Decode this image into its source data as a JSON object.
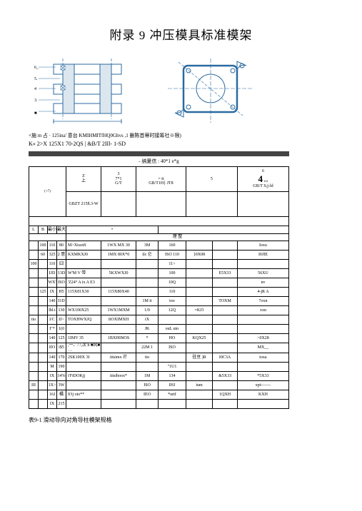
{
  "title": "附录 9 冲压模具标准模架",
  "fig": {
    "caption": "  ×施 m 占  · 125ina'   意台 KMIHMITfHQ0Ghvs ,1 删陈首蒂时接筹社※限)",
    "kline": "K« 2>X 125X1 70-2QS  |  &B/T 2IIl- 1-SD",
    "midlabel": "-  纳夏信 : 40*1 e*g"
  },
  "header": {
    "c1_code": "(+7)",
    "c2_top": "上",
    "c2_bot": "GBZT 215$.3-W",
    "c3_top": "7*1",
    "c3_bot": "G/T",
    "c4_top": "= tt",
    "c4_bot": "GB/T1H} JT8",
    "c5_num": "4",
    "c5_sub": "««",
    "c5_bot": "GB/T S;j-ld",
    "col_z": "Z",
    "col_3": "3",
    "col_5": "5",
    "col_6": "6"
  },
  "subhdr": {
    "a": "L",
    "b": "B",
    "c": "最小",
    "d": "最大",
    "e": "•",
    "mid": "理   整"
  },
  "rows": [
    {
      "a": "",
      "b": "100",
      "c": "110",
      "d1": "80",
      "d2": "",
      "e": "M>XiuotS",
      "f": "1WX MX 30",
      "g": "3M",
      "h": "160",
      "i": "",
      "j": "",
      "k": "Ioxu"
    },
    {
      "a": "",
      "b": "60",
      "c": "325",
      "d1": "2",
      "d2": "意",
      "e": "KXMKXJ0",
      "f": "1MX 80X*0",
      "g": "ilc 仑",
      "h": "ISO 110",
      "i": "}0X08",
      "j": "",
      "k": "I0JIE"
    },
    {
      "a": "100",
      "b": "",
      "c": "110",
      "d1": "臼",
      "d2": "",
      "e": "",
      "f": "",
      "g": "",
      "h": "11>",
      "i": "",
      "j": "",
      "k": ""
    },
    {
      "a": "",
      "b": "",
      "c": "IJD",
      "d1": "13D",
      "d2": "",
      "e": "W'M V 带",
      "f": "5KXWXJ0",
      "g": "",
      "h": "100",
      "i": "",
      "j": "E5X33",
      "k": "56XU"
    },
    {
      "a": "",
      "b": "",
      "c": "WX'",
      "d1": "ISO",
      "d2": "",
      "e": "'Z24° A ix A E3",
      "f": "",
      "g": "",
      "h": "10Q",
      "i": "",
      "j": "",
      "k": "nv"
    },
    {
      "a": "",
      "b": "125",
      "c": "IX",
      "d1": "H5",
      "d2": "",
      "e": "115X81X30",
      "f": "115X80X40",
      "g": "",
      "h": "110",
      "i": "",
      "j": "",
      "k": "4-jR A"
    },
    {
      "a": "",
      "b": "",
      "c": "140",
      "d1": "I1D",
      "d2": "",
      "e": "",
      "f": "",
      "g": "1M it",
      "h": "too",
      "i": "",
      "j": "TOXM",
      "k": "7oxn"
    },
    {
      "a": "",
      "b": "",
      "c": "lbl.t",
      "d1": "130",
      "d2": "",
      "e": "WX100X25",
      "f": "1WX1MXM",
      "g": "1/0",
      "h": "12Q",
      "i": "=KJ3",
      "j": "",
      "k": "xxn"
    },
    {
      "a": "ito",
      "b": "",
      "c": "I/C",
      "d1": "IJ>",
      "d2": "",
      "e": "TOXHWXJQ",
      "f": "ItOXIMXH",
      "g": "iX",
      "h": "",
      "i": "",
      "j": "",
      "k": ""
    },
    {
      "a": "",
      "b": "",
      "c": "I\"*",
      "d1": "1(0",
      "d2": "",
      "e": "",
      "f": "",
      "g": "JK",
      "h": "ouL uto",
      "i": "",
      "j": "",
      "k": ""
    },
    {
      "a": "",
      "b": "",
      "c": "140",
      "d1": "125",
      "d2": "",
      "e": "1IMV 35",
      "f": "1BXH0M3S",
      "g": "*",
      "h": "HO",
      "i": "KQX25",
      "j": "",
      "k": ">0X28"
    },
    {
      "a": "",
      "b": "",
      "c": "IfO",
      "d1": "i$5",
      "d2": "",
      "e": "  ,一、/ /,次 h ■风■ …",
      "f": "",
      "g": "22M 1",
      "h": "ISO",
      "i": "",
      "j": "",
      "k": "MX__"
    },
    {
      "a": "",
      "b": "",
      "c": "140",
      "d1": "170",
      "d2": "",
      "e": "2SK100X 3I",
      "f": "iitsimx 芒",
      "g": "ito",
      "h": "",
      "i": "驻亘 )R",
      "j": "I0C3A",
      "k": "toxa"
    },
    {
      "a": "",
      "b": "",
      "c": "M",
      "d1": "190",
      "d2": "",
      "e": "",
      "f": "",
      "g": "",
      "h": "\"1U1",
      "i": "",
      "j": "",
      "k": ""
    },
    {
      "a": "",
      "b": "",
      "c": "IX",
      "d1": "14%",
      "d2": "",
      "e": "i'FiDOKjj",
      "f": "iitsiboox*",
      "g": "1M",
      "h": "134",
      "i": "",
      "j": "&5X33",
      "k": "*5X33"
    },
    {
      "a": "III",
      "b": "",
      "c": "1X>",
      "d1": "3W",
      "d2": "",
      "e": "",
      "f": "",
      "g": "ISO",
      "h": "IHJ",
      "i": "ium",
      "j": "",
      "k": "xpt-——"
    },
    {
      "a": "",
      "b": "",
      "c": "16J",
      "d1": "橘",
      "d2": "",
      "e": "fi'ij oio**",
      "f": "",
      "g": "IEO",
      "h": "*urtf",
      "i": "",
      "j": "1QXH",
      "k": "KXH"
    },
    {
      "a": "",
      "b": "",
      "c": "IX",
      "d1": "215",
      "d2": "",
      "e": "",
      "f": "",
      "g": "",
      "h": "",
      "i": "",
      "j": "",
      "k": ""
    }
  ],
  "bottom_caption": "表9-1 滑动导向对角导柱模架规格"
}
